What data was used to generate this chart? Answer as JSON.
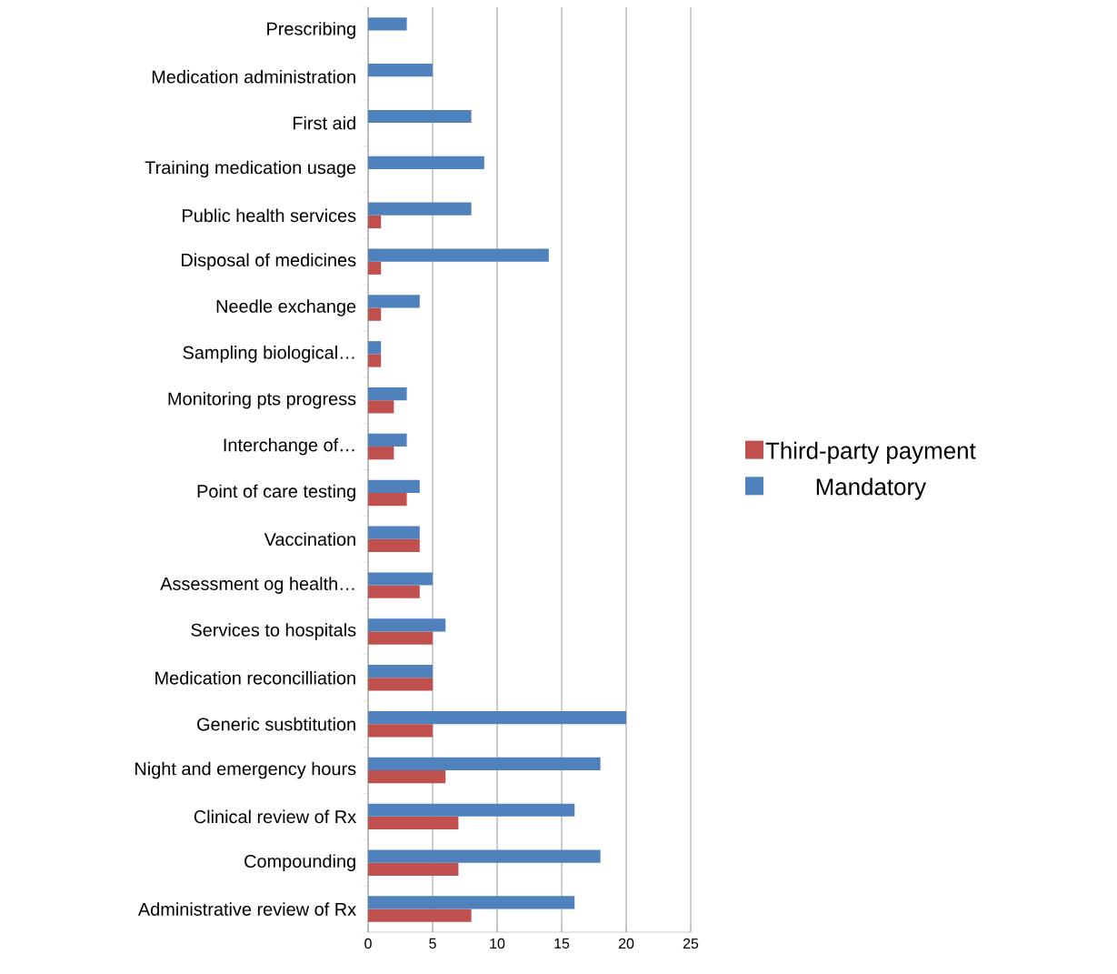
{
  "chart_data": {
    "type": "bar",
    "orientation": "horizontal",
    "categories": [
      "Prescribing",
      "Medication administration",
      "First aid",
      "Training medication usage",
      "Public health services",
      "Disposal of medicines",
      "Needle exchange",
      "Sampling biological…",
      "Monitoring pts progress",
      "Interchange of…",
      "Point of care testing",
      "Vaccination",
      "Assessment og health…",
      "Services to hospitals",
      "Medication reconcilliation",
      "Generic susbtitution",
      "Night and emergency hours",
      "Clinical review of Rx",
      "Compounding",
      "Administrative review of Rx"
    ],
    "series": [
      {
        "name": "Third-party payment",
        "color": "#c0504d",
        "values": [
          0,
          0,
          0,
          0,
          1,
          1,
          1,
          1,
          2,
          2,
          3,
          4,
          4,
          5,
          5,
          5,
          6,
          7,
          7,
          8
        ]
      },
      {
        "name": "Mandatory",
        "color": "#4f81bd",
        "values": [
          3,
          5,
          8,
          9,
          8,
          14,
          4,
          1,
          3,
          3,
          4,
          4,
          5,
          6,
          5,
          20,
          18,
          16,
          18,
          16
        ]
      }
    ],
    "xlim": [
      0,
      25
    ],
    "xticks": [
      0,
      5,
      10,
      15,
      20,
      25
    ],
    "grid": "x",
    "legend": "right"
  }
}
